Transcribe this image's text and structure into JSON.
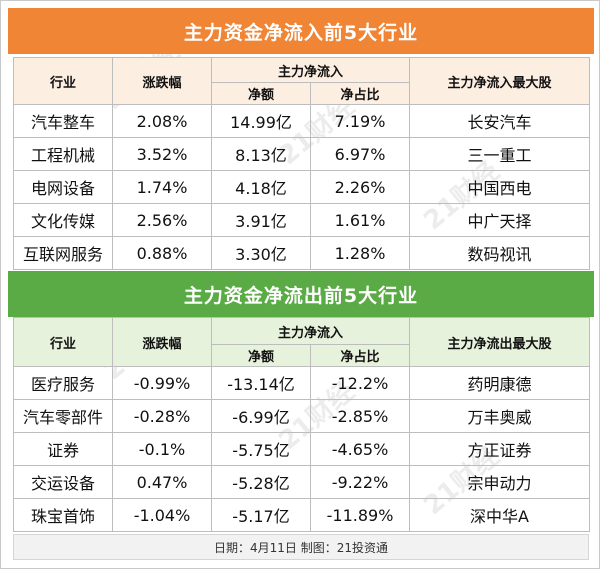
{
  "inflow": {
    "title": "主力资金净流入前5大行业",
    "headers": {
      "industry": "行业",
      "change": "涨跌幅",
      "net_group": "主力净流入",
      "net_amount": "净额",
      "net_ratio": "净占比",
      "top_stock": "主力净流入最大股"
    },
    "rows": [
      {
        "industry": "汽车整车",
        "change": "2.08%",
        "amount": "14.99亿",
        "ratio": "7.19%",
        "stock": "长安汽车"
      },
      {
        "industry": "工程机械",
        "change": "3.52%",
        "amount": "8.13亿",
        "ratio": "6.97%",
        "stock": "三一重工"
      },
      {
        "industry": "电网设备",
        "change": "1.74%",
        "amount": "4.18亿",
        "ratio": "2.26%",
        "stock": "中国西电"
      },
      {
        "industry": "文化传媒",
        "change": "2.56%",
        "amount": "3.91亿",
        "ratio": "1.61%",
        "stock": "中广天择"
      },
      {
        "industry": "互联网服务",
        "change": "0.88%",
        "amount": "3.30亿",
        "ratio": "1.28%",
        "stock": "数码视讯"
      }
    ]
  },
  "outflow": {
    "title": "主力资金净流出前5大行业",
    "headers": {
      "industry": "行业",
      "change": "涨跌幅",
      "net_group": "主力净流入",
      "net_amount": "净额",
      "net_ratio": "净占比",
      "top_stock": "主力净流出最大股"
    },
    "rows": [
      {
        "industry": "医疗服务",
        "change": "-0.99%",
        "amount": "-13.14亿",
        "ratio": "-12.2%",
        "stock": "药明康德"
      },
      {
        "industry": "汽车零部件",
        "change": "-0.28%",
        "amount": "-6.99亿",
        "ratio": "-2.85%",
        "stock": "万丰奥威"
      },
      {
        "industry": "证券",
        "change": "-0.1%",
        "amount": "-5.75亿",
        "ratio": "-4.65%",
        "stock": "方正证券"
      },
      {
        "industry": "交运设备",
        "change": "0.47%",
        "amount": "-5.28亿",
        "ratio": "-9.22%",
        "stock": "宗申动力"
      },
      {
        "industry": "珠宝首饰",
        "change": "-1.04%",
        "amount": "-5.17亿",
        "ratio": "-11.89%",
        "stock": "深中华A"
      }
    ]
  },
  "footer": {
    "text": "日期：4月11日 制图：21投资通"
  },
  "watermark": {
    "text": "21财经"
  },
  "colors": {
    "inflow_banner": "#ef8535",
    "outflow_banner": "#5aab45",
    "inflow_header_bg": "#fdeee2",
    "outflow_header_bg": "#e6f2dc"
  }
}
